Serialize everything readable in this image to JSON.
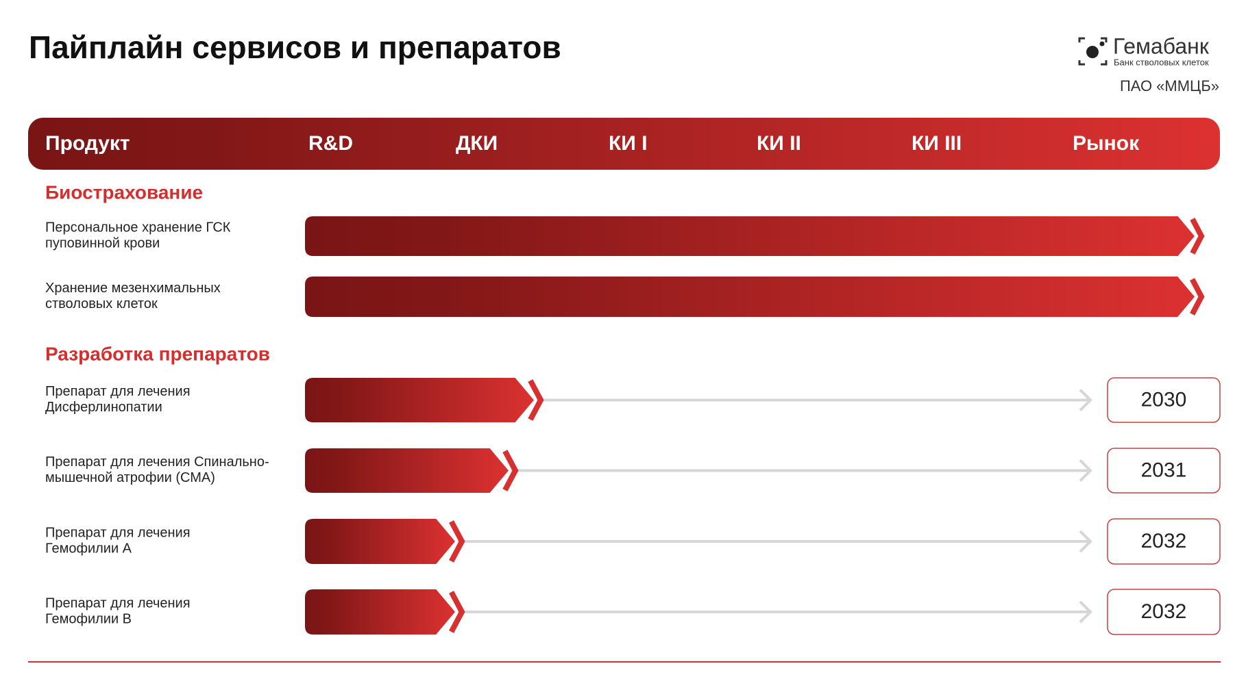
{
  "header": {
    "title": "Пайплайн сервисов и препаратов",
    "logo": {
      "name": "Гемабанк",
      "tagline": "Банк стволовых клеток"
    },
    "company": "ПАО «ММЦБ»"
  },
  "stages": [
    "Продукт",
    "R&D",
    "ДКИ",
    "КИ I",
    "КИ II",
    "КИ III",
    "Рынок"
  ],
  "sections": [
    {
      "title": "Биострахование",
      "items": [
        {
          "label": [
            "Персональное хранение ГСК",
            "пуповинной крови"
          ]
        },
        {
          "label": [
            "Хранение мезенхимальных",
            "стволовых клеток"
          ]
        }
      ]
    },
    {
      "title": "Разработка препаратов",
      "items": [
        {
          "label": [
            "Препарат для лечения",
            "Дисферлинопатии"
          ],
          "year": "2030"
        },
        {
          "label": [
            "Препарат для лечения Спинально-",
            "мышечной атрофии (СМА)"
          ],
          "year": "2031"
        },
        {
          "label": [
            "Препарат для лечения",
            "Гемофилии А"
          ],
          "year": "2032"
        },
        {
          "label": [
            "Препарат для лечения",
            "Гемофилии В"
          ],
          "year": "2032"
        }
      ]
    }
  ]
}
